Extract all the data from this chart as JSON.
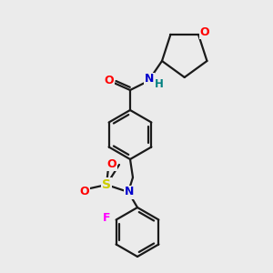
{
  "background_color": "#ebebeb",
  "bond_color": "#1a1a1a",
  "atom_colors": {
    "O": "#ff0000",
    "N": "#0000cc",
    "S": "#cccc00",
    "F": "#ff00ff",
    "H": "#008080",
    "C": "#1a1a1a"
  },
  "figsize": [
    3.0,
    3.0
  ],
  "dpi": 100
}
